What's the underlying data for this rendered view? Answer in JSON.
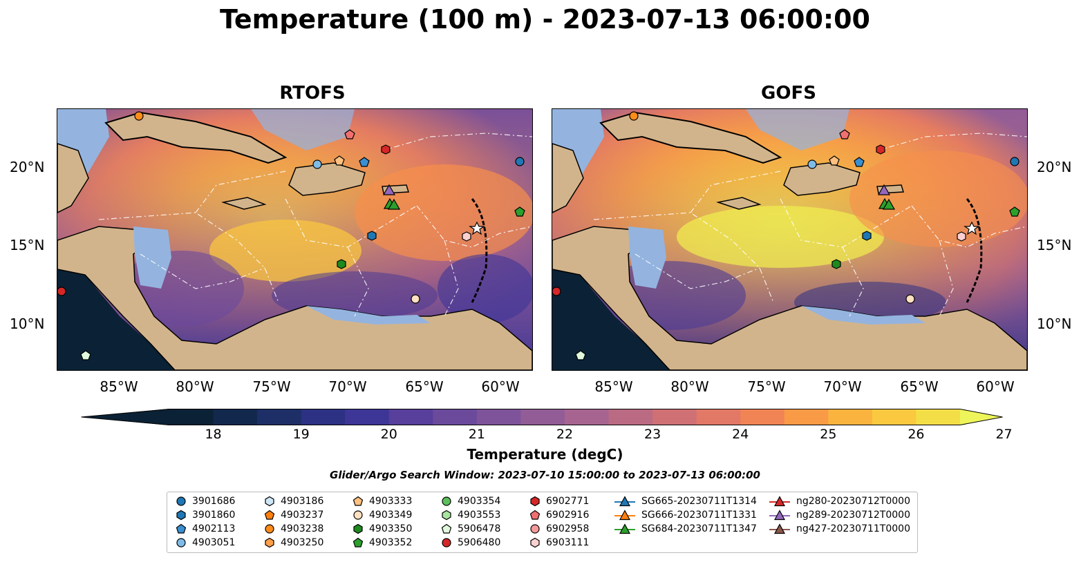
{
  "title": "Temperature (100 m) - 2023-07-13 06:00:00",
  "panels": [
    {
      "title": "RTOFS"
    },
    {
      "title": "GOFS"
    }
  ],
  "lat_labels": [
    "20°N",
    "15°N",
    "10°N"
  ],
  "lon_labels": [
    "85°W",
    "80°W",
    "75°W",
    "70°W",
    "65°W",
    "60°W"
  ],
  "colorbar": {
    "label": "Temperature (degC)",
    "ticks": [
      "18",
      "19",
      "20",
      "21",
      "22",
      "23",
      "24",
      "25",
      "26",
      "27"
    ],
    "colors": [
      "#0b2135",
      "#13284d",
      "#1d2f66",
      "#2d3183",
      "#3d3697",
      "#573f9b",
      "#6b4a9c",
      "#7f539a",
      "#925c97",
      "#a76490",
      "#bb6a84",
      "#cf7075",
      "#e27866",
      "#f18454",
      "#f99a46",
      "#fbb33f",
      "#fac93f",
      "#f4de48"
    ],
    "extend_low": "#0b2135",
    "extend_high": "#eef55a"
  },
  "search_window": "Glider/Argo Search Window: 2023-07-10 15:00:00 to 2023-07-13 06:00:00",
  "legend": [
    {
      "label": "3901686",
      "marker": "circle",
      "color": "#1f77b4"
    },
    {
      "label": "3901860",
      "marker": "hexagon",
      "color": "#1f77b4"
    },
    {
      "label": "4902113",
      "marker": "pentagon",
      "color": "#3a8fd0"
    },
    {
      "label": "4903051",
      "marker": "circle",
      "color": "#7fbbe6"
    },
    {
      "label": "4903186",
      "marker": "hexagon",
      "color": "#cfe6f6"
    },
    {
      "label": "4903237",
      "marker": "pentagon",
      "color": "#ff7f0e"
    },
    {
      "label": "4903238",
      "marker": "circle",
      "color": "#ff8c1a"
    },
    {
      "label": "4903250",
      "marker": "hexagon",
      "color": "#ffa04a"
    },
    {
      "label": "4903333",
      "marker": "pentagon",
      "color": "#ffc080"
    },
    {
      "label": "4903349",
      "marker": "circle",
      "color": "#ffe0c0"
    },
    {
      "label": "4903350",
      "marker": "hexagon",
      "color": "#1f8a1f"
    },
    {
      "label": "4903352",
      "marker": "pentagon",
      "color": "#2ca02c"
    },
    {
      "label": "4903354",
      "marker": "circle",
      "color": "#5cc05c"
    },
    {
      "label": "4903553",
      "marker": "hexagon",
      "color": "#a8e4a0"
    },
    {
      "label": "5906478",
      "marker": "pentagon",
      "color": "#e0f8dc"
    },
    {
      "label": "5906480",
      "marker": "circle",
      "color": "#d62728"
    },
    {
      "label": "6902771",
      "marker": "hexagon",
      "color": "#d62728"
    },
    {
      "label": "6902916",
      "marker": "pentagon",
      "color": "#f07070"
    },
    {
      "label": "6902958",
      "marker": "circle",
      "color": "#f59a9a"
    },
    {
      "label": "6903111",
      "marker": "hexagon",
      "color": "#fdd0d0"
    },
    {
      "label": "SG665-20230711T1314",
      "marker": "triangle-line",
      "color": "#1f77b4"
    },
    {
      "label": "SG666-20230711T1331",
      "marker": "triangle-line",
      "color": "#ff7f0e"
    },
    {
      "label": "SG684-20230711T1347",
      "marker": "triangle-line",
      "color": "#2ca02c"
    },
    {
      "label": "ng280-20230712T0000",
      "marker": "triangle-line",
      "color": "#d62728"
    },
    {
      "label": "ng289-20230712T0000",
      "marker": "triangle-line",
      "color": "#9467bd"
    },
    {
      "label": "ng427-20230711T0000",
      "marker": "triangle-line",
      "color": "#8c564b"
    }
  ],
  "colors": {
    "land": "#d2b48c",
    "shelf": "#94b4df",
    "warm": "#f7b541",
    "cool": "#574193"
  }
}
